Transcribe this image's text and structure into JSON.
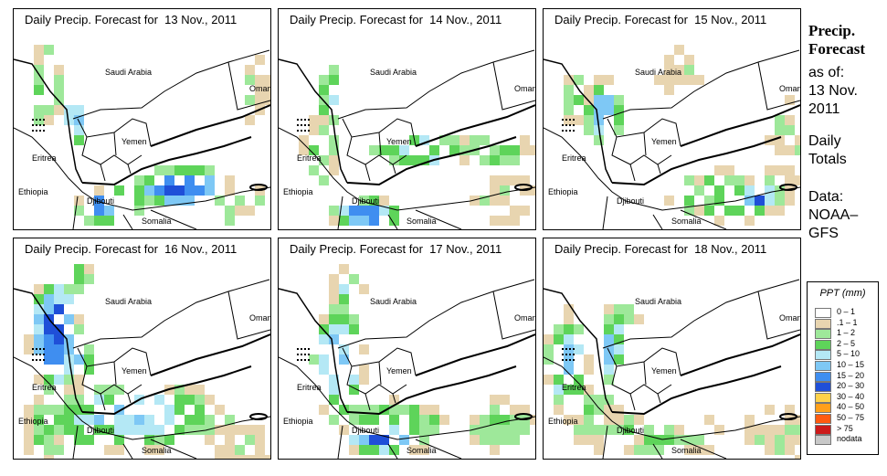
{
  "panels": [
    {
      "title_prefix": "Daily Precip. Forecast for",
      "date": "13 Nov., 2011"
    },
    {
      "title_prefix": "Daily Precip. Forecast for",
      "date": "14 Nov., 2011"
    },
    {
      "title_prefix": "Daily Precip. Forecast for",
      "date": "15 Nov., 2011"
    },
    {
      "title_prefix": "Daily Precip. Forecast for",
      "date": "16 Nov., 2011"
    },
    {
      "title_prefix": "Daily Precip. Forecast for",
      "date": "17 Nov., 2011"
    },
    {
      "title_prefix": "Daily Precip. Forecast for",
      "date": "18 Nov., 2011"
    }
  ],
  "map_labels": {
    "saudi": "Saudi Arabia",
    "oman": "Oman",
    "yemen": "Yemen",
    "eritrea": "Eritrea",
    "ethiopia": "Ethiopia",
    "djibouti": "Djibouti",
    "somalia": "Somalia"
  },
  "sidebar": {
    "title_line1": "Precip.",
    "title_line2": "Forecast",
    "asof_line1": "as of:",
    "asof_line2": "13 Nov.",
    "asof_line3": "2011",
    "totals_line1": "Daily",
    "totals_line2": "Totals",
    "data_line1": "Data:",
    "data_line2": "NOAA–",
    "data_line3": "GFS"
  },
  "legend": {
    "title": "PPT (mm)",
    "items": [
      {
        "label": "0 – 1",
        "color": "#ffffff"
      },
      {
        "label": ".1 – 1",
        "color": "#e8d5b0"
      },
      {
        "label": "1 – 2",
        "color": "#9ee89a"
      },
      {
        "label": "2 – 5",
        "color": "#5ed45a"
      },
      {
        "label": "5 – 10",
        "color": "#b4e8f5"
      },
      {
        "label": "10 – 15",
        "color": "#7ec8f5"
      },
      {
        "label": "15 – 20",
        "color": "#3f8ef0"
      },
      {
        "label": "20 – 30",
        "color": "#1f4fd8"
      },
      {
        "label": "30 – 40",
        "color": "#ffd24a"
      },
      {
        "label": "40 – 50",
        "color": "#ff9f1a"
      },
      {
        "label": "50 – 75",
        "color": "#ff5a10"
      },
      {
        "label": "> 75",
        "color": "#cc1a1a"
      },
      {
        "label": "nodata",
        "color": "#c8c8c8"
      }
    ]
  }
}
